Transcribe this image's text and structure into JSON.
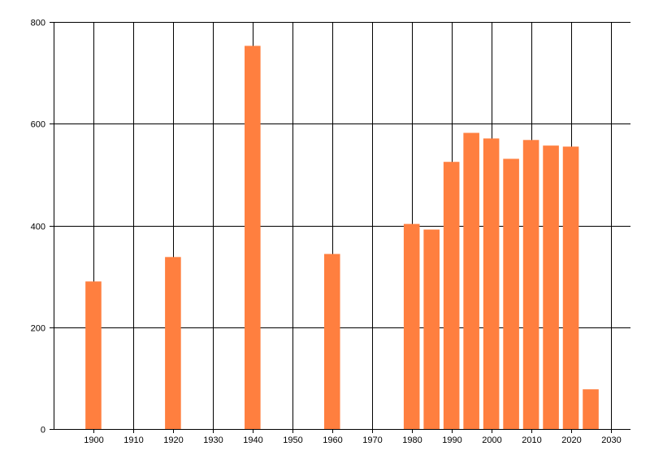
{
  "chart_data": {
    "type": "bar",
    "title": "",
    "xlabel": "",
    "ylabel": "",
    "x": [
      1900,
      1920,
      1940,
      1960,
      1980,
      1985,
      1990,
      1995,
      2000,
      2005,
      2010,
      2015,
      2020,
      2025
    ],
    "values": [
      290,
      338,
      753,
      344,
      403,
      392,
      525,
      582,
      571,
      531,
      568,
      557,
      555,
      78
    ],
    "xlim": [
      1890,
      2035
    ],
    "ylim": [
      0,
      800
    ],
    "x_ticks": [
      1900,
      1910,
      1920,
      1930,
      1940,
      1950,
      1960,
      1970,
      1980,
      1990,
      2000,
      2010,
      2020,
      2030
    ],
    "y_ticks": [
      0,
      200,
      400,
      600,
      800
    ],
    "bar_width_years": 4,
    "grid": true,
    "legend": "none",
    "colors": {
      "bar": "#ff7f3f",
      "grid": "#000000",
      "axis": "#000000",
      "background": "#ffffff"
    }
  }
}
